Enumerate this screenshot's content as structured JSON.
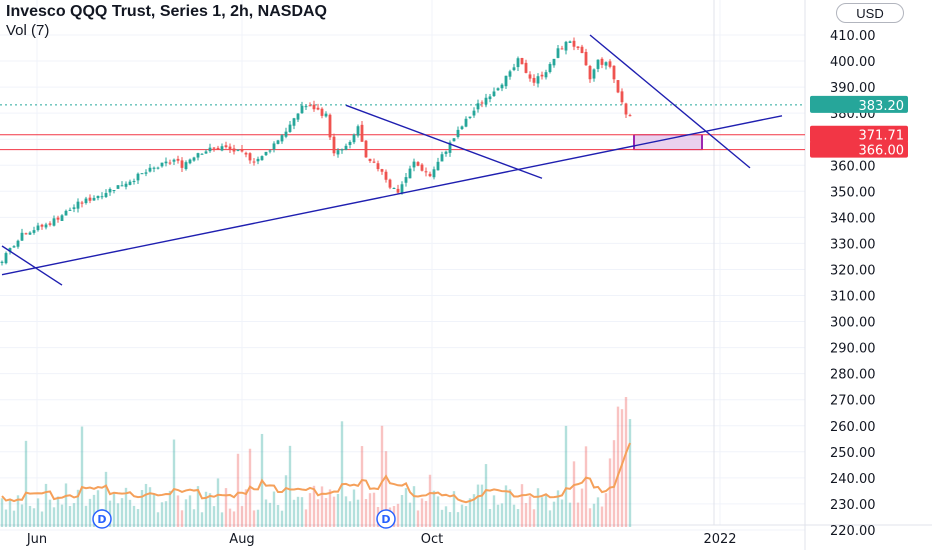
{
  "header": {
    "title": "Invesco QQQ Trust, Series 1, 2h, NASDAQ",
    "indicator": "Vol (7)",
    "currency": "USD"
  },
  "chart_data": {
    "type": "candlestick",
    "symbol": "Invesco QQQ Trust, Series 1, 2h, NASDAQ",
    "x_tick_labels": [
      "Jun",
      "Aug",
      "Oct",
      "2022"
    ],
    "y_axis": {
      "ticks": [
        410,
        400,
        390,
        380,
        370,
        360,
        350,
        340,
        330,
        320,
        310,
        300,
        290,
        280,
        270,
        260,
        250,
        240,
        230,
        220
      ],
      "range": [
        220,
        414
      ],
      "position": "right",
      "decimals": 2
    },
    "price_path": [
      [
        0,
        322
      ],
      [
        6,
        334
      ],
      [
        12,
        337
      ],
      [
        20,
        345
      ],
      [
        30,
        352
      ],
      [
        38,
        358
      ],
      [
        44,
        362
      ],
      [
        46,
        360
      ],
      [
        50,
        365
      ],
      [
        56,
        367
      ],
      [
        60,
        365
      ],
      [
        64,
        362
      ],
      [
        66,
        363
      ],
      [
        70,
        370
      ],
      [
        74,
        377
      ],
      [
        76,
        383
      ],
      [
        79,
        382
      ],
      [
        82,
        379
      ],
      [
        84,
        364
      ],
      [
        88,
        368
      ],
      [
        90,
        375
      ],
      [
        92,
        362
      ],
      [
        96,
        358
      ],
      [
        98,
        352
      ],
      [
        100,
        350
      ],
      [
        104,
        361
      ],
      [
        108,
        356
      ],
      [
        112,
        366
      ],
      [
        116,
        375
      ],
      [
        120,
        383
      ],
      [
        124,
        389
      ],
      [
        128,
        395
      ],
      [
        130,
        400
      ],
      [
        134,
        392
      ],
      [
        138,
        398
      ],
      [
        140,
        404
      ],
      [
        143,
        408
      ],
      [
        146,
        402
      ],
      [
        148,
        393
      ],
      [
        150,
        400
      ],
      [
        153,
        398
      ],
      [
        155,
        388
      ],
      [
        157,
        380
      ]
    ],
    "price_lines": [
      {
        "label": "383.20",
        "value": 383.2,
        "color": "#26a69a",
        "style": "dotted"
      },
      {
        "label": "371.71",
        "value": 371.71,
        "color": "#f23645",
        "style": "solid"
      },
      {
        "label": "366.00",
        "value": 366.0,
        "color": "#f23645",
        "style": "solid"
      }
    ],
    "trendlines": [
      {
        "color": "#1f1fb0",
        "from": [
          0,
          318
        ],
        "to": [
          195,
          379
        ]
      },
      {
        "color": "#1f1fb0",
        "from": [
          0,
          329
        ],
        "to": [
          15,
          314
        ]
      },
      {
        "color": "#1f1fb0",
        "from": [
          86,
          383
        ],
        "to": [
          135,
          355
        ]
      },
      {
        "color": "#1f1fb0",
        "from": [
          147,
          410
        ],
        "to": [
          187,
          359
        ]
      }
    ],
    "target_zone": {
      "from_bar": 158,
      "to_bar": 175,
      "low": 366.0,
      "high": 371.71,
      "color": "#9c27b0"
    },
    "volume": {
      "label": "Vol (7)",
      "bar_color": "#26a69a",
      "ma_color": "#f5a05a"
    },
    "dividends": [
      {
        "label": "D",
        "bar": 25
      },
      {
        "label": "D",
        "bar": 96
      }
    ],
    "grid": true,
    "vertical_marker_bar": 178
  }
}
